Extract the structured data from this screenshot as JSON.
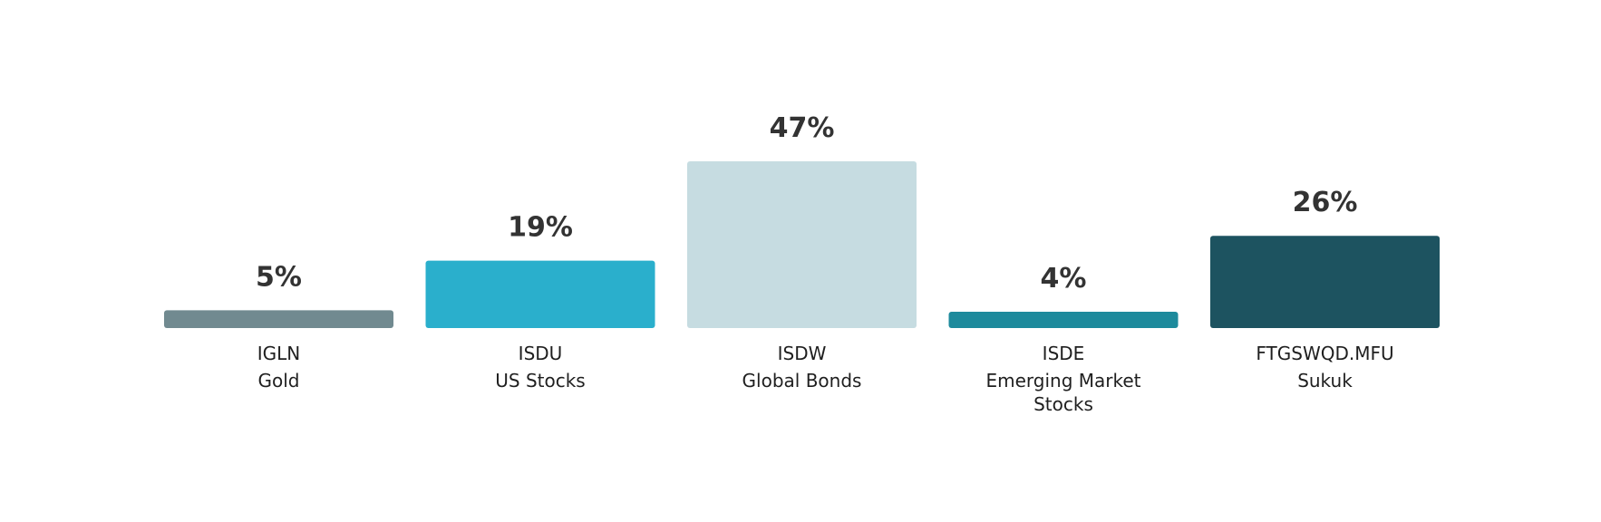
{
  "chart_data": {
    "type": "bar",
    "title": "",
    "xlabel": "",
    "ylabel": "",
    "ylim": [
      0,
      47
    ],
    "unit": "%",
    "grid": false,
    "legend": "none",
    "categories": [
      {
        "ticker": "IGLN",
        "name": [
          "Gold"
        ]
      },
      {
        "ticker": "ISDU",
        "name": [
          "US Stocks"
        ]
      },
      {
        "ticker": "ISDW",
        "name": [
          "Global Bonds"
        ]
      },
      {
        "ticker": "ISDE",
        "name": [
          "Emerging Market",
          "Stocks"
        ]
      },
      {
        "ticker": "FTGSWQD.MFU",
        "name": [
          "Sukuk"
        ]
      }
    ],
    "values": [
      5,
      19,
      47,
      4,
      26
    ],
    "value_labels": [
      "5%",
      "19%",
      "47%",
      "4%",
      "26%"
    ],
    "colors": [
      "#718a90",
      "#2aafcc",
      "#c6dce1",
      "#1d8a9c",
      "#1d5360"
    ]
  }
}
